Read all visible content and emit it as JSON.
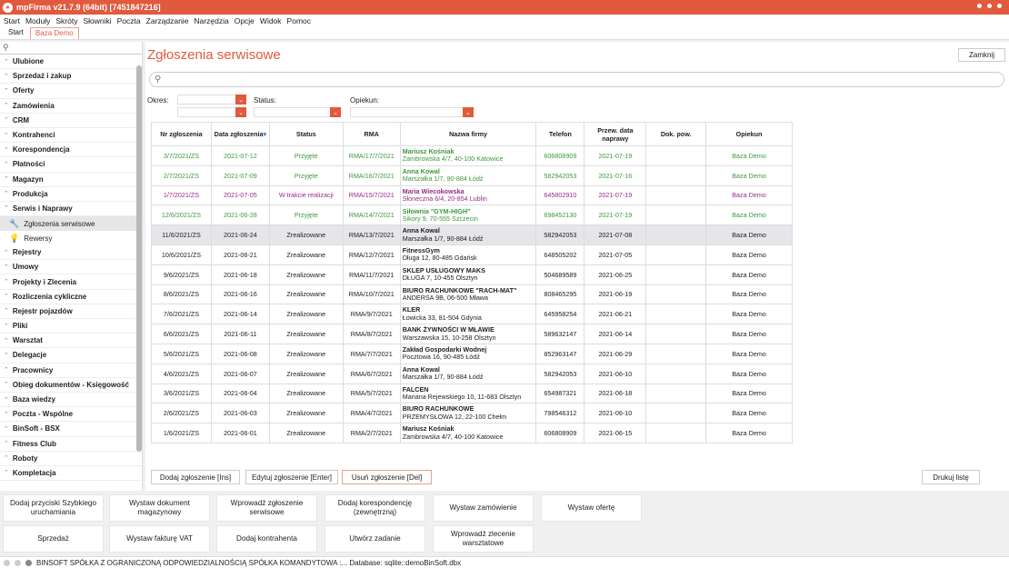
{
  "app": {
    "title": "mpFirma v21.7.9 (64bit) [7451847216]"
  },
  "menu": [
    "Start",
    "Moduły",
    "Skróty",
    "Słowniki",
    "Poczta",
    "Zarządzanie",
    "Narzędzia",
    "Opcje",
    "Widok",
    "Pomoc"
  ],
  "tabs": [
    {
      "label": "Start"
    },
    {
      "label": "Baza Demo"
    }
  ],
  "sidebar": {
    "search_icon": "search-icon",
    "items_top": [
      "Ulubione",
      "Sprzedaż i zakup",
      "Oferty",
      "Zamówienia",
      "CRM",
      "Kontrahenci",
      "Korespondencja",
      "Płatności",
      "Magazyn",
      "Produkcja",
      "Serwis i Naprawy"
    ],
    "sub": [
      {
        "label": "Zgłoszenia serwisowe",
        "icon": "wrench-icon"
      },
      {
        "label": "Rewersy",
        "icon": "bulb-icon"
      }
    ],
    "items_bottom": [
      "Rejestry",
      "Umowy",
      "Projekty i Zlecenia",
      "Rozliczenia cykliczne",
      "Rejestr pojazdów",
      "Pliki",
      "Warsztat",
      "Delegacje",
      "Pracownicy",
      "Obieg dokumentów - Księgowość",
      "Baza wiedzy",
      "Poczta - Wspólne",
      "BinSoft - BSX",
      "Fitness Club",
      "Roboty",
      "Kompletacja"
    ]
  },
  "main": {
    "title": "Zgłoszenia serwisowe",
    "close_label": "Zamknij",
    "search_icon": "search-icon",
    "filters": {
      "period": "Okres:",
      "status": "Status:",
      "keeper": "Opiekun:"
    }
  },
  "table": {
    "columns": [
      "Nr zgłoszenia",
      "Data zgłoszenia",
      "Status",
      "RMA",
      "Nazwa firmy",
      "Telefon",
      "Przew. data naprawy",
      "Dok. pow.",
      "Opiekun"
    ],
    "rows": [
      {
        "nr": "3/7/2021/ZS",
        "date": "2021-07-12",
        "status": "Przyjęte",
        "rma": "RMA/17/7/2021",
        "firm": "Mariusz Kośniak",
        "addr": "Zambrowska 4/7, 40-100 Katowice",
        "phone": "606808909",
        "due": "2021-07-19",
        "doc": "",
        "keeper": "Baza Demo",
        "color": "green"
      },
      {
        "nr": "2/7/2021/ZS",
        "date": "2021-07-09",
        "status": "Przyjęte",
        "rma": "RMA/16/7/2021",
        "firm": "Anna Kowal",
        "addr": "Marszałka 1/7, 90-884 Łódź",
        "phone": "582942053",
        "due": "2021-07-16",
        "doc": "",
        "keeper": "Baza Demo",
        "color": "green"
      },
      {
        "nr": "1/7/2021/ZS",
        "date": "2021-07-05",
        "status": "W trakcie realizacji",
        "rma": "RMA/15/7/2021",
        "firm": "Maria Wiecokowska",
        "addr": "Słoneczna 6/4, 20-854 Lublin",
        "phone": "645802910",
        "due": "2021-07-19",
        "doc": "",
        "keeper": "Baza Demo",
        "color": "purple"
      },
      {
        "nr": "12/6/2021/ZS",
        "date": "2021-06-28",
        "status": "Przyjęte",
        "rma": "RMA/14/7/2021",
        "firm": "Siłownia \"GYM-HIGH\"",
        "addr": "Sikory 9, 70-555 Szczecin",
        "phone": "698452130",
        "due": "2021-07-19",
        "doc": "",
        "keeper": "Baza Demo",
        "color": "green"
      },
      {
        "nr": "11/6/2021/ZS",
        "date": "2021-06-24",
        "status": "Zrealizowane",
        "rma": "RMA/13/7/2021",
        "firm": "Anna Kowal",
        "addr": "Marszałka 1/7, 90-884 Łódź",
        "phone": "582942053",
        "due": "2021-07-08",
        "doc": "",
        "keeper": "Baza Demo",
        "color": "normal",
        "selected": true
      },
      {
        "nr": "10/6/2021/ZS",
        "date": "2021-06-21",
        "status": "Zrealizowane",
        "rma": "RMA/12/7/2021",
        "firm": "FitnessGym",
        "addr": "Długa 12, 80-485 Gdańsk",
        "phone": "648505202",
        "due": "2021-07-05",
        "doc": "",
        "keeper": "Baza Demo",
        "color": "normal"
      },
      {
        "nr": "9/6/2021/ZS",
        "date": "2021-06-18",
        "status": "Zrealizowane",
        "rma": "RMA/11/7/2021",
        "firm": "SKLEP USŁUGOWY MAKS",
        "addr": "DŁUGA 7, 10-455 Olsztyn",
        "phone": "504689589",
        "due": "2021-06-25",
        "doc": "",
        "keeper": "Baza Demo",
        "color": "normal"
      },
      {
        "nr": "8/6/2021/ZS",
        "date": "2021-06-16",
        "status": "Zrealizowane",
        "rma": "RMA/10/7/2021",
        "firm": "BIURO RACHUNKOWE \"RACH-MAT\"",
        "addr": "ANDERSA 9B, 06-500 Mława",
        "phone": "808465295",
        "due": "2021-06-19",
        "doc": "",
        "keeper": "Baza Demo",
        "color": "normal"
      },
      {
        "nr": "7/6/2021/ZS",
        "date": "2021-06-14",
        "status": "Zrealizowane",
        "rma": "RMA/9/7/2021",
        "firm": "KLER",
        "addr": "Łowicka 33, 81-504 Gdynia",
        "phone": "645958254",
        "due": "2021-06-21",
        "doc": "",
        "keeper": "Baza Demo",
        "color": "normal"
      },
      {
        "nr": "6/6/2021/ZS",
        "date": "2021-06-11",
        "status": "Zrealizowane",
        "rma": "RMA/8/7/2021",
        "firm": "BANK ŻYWNOŚCI W MŁAWIE",
        "addr": "Warszawska 15, 10-258 Olsztyn",
        "phone": "589632147",
        "due": "2021-06-14",
        "doc": "",
        "keeper": "Baza Demo",
        "color": "normal"
      },
      {
        "nr": "5/6/2021/ZS",
        "date": "2021-06-08",
        "status": "Zrealizowane",
        "rma": "RMA/7/7/2021",
        "firm": "Zakład Gospodarki Wodnej",
        "addr": "Pocztowa 16, 90-485 Łódź",
        "phone": "852963147",
        "due": "2021-06-29",
        "doc": "",
        "keeper": "Baza Demo",
        "color": "normal"
      },
      {
        "nr": "4/6/2021/ZS",
        "date": "2021-06-07",
        "status": "Zrealizowane",
        "rma": "RMA/6/7/2021",
        "firm": "Anna Kowal",
        "addr": "Marszałka 1/7, 90-884 Łódź",
        "phone": "582942053",
        "due": "2021-06-10",
        "doc": "",
        "keeper": "Baza Demo",
        "color": "normal"
      },
      {
        "nr": "3/6/2021/ZS",
        "date": "2021-06-04",
        "status": "Zrealizowane",
        "rma": "RMA/5/7/2021",
        "firm": "FALCEN",
        "addr": "Mariana Rejewskiego 10, 11-683 Olsztyn",
        "phone": "654987321",
        "due": "2021-06-18",
        "doc": "",
        "keeper": "Baza Demo",
        "color": "normal"
      },
      {
        "nr": "2/6/2021/ZS",
        "date": "2021-06-03",
        "status": "Zrealizowane",
        "rma": "RMA/4/7/2021",
        "firm": "BIURO RACHUNKOWE",
        "addr": "PRZEMYSŁOWA 12, 22-100 Chełm",
        "phone": "798546312",
        "due": "2021-06-10",
        "doc": "",
        "keeper": "Baza Demo",
        "color": "normal"
      },
      {
        "nr": "1/6/2021/ZS",
        "date": "2021-06-01",
        "status": "Zrealizowane",
        "rma": "RMA/2/7/2021",
        "firm": "Mariusz Kośniak",
        "addr": "Zambrowska 4/7, 40-100 Katowice",
        "phone": "606808909",
        "due": "2021-06-15",
        "doc": "",
        "keeper": "Baza Demo",
        "color": "normal"
      }
    ]
  },
  "actions": {
    "add": "Dodaj zgłoszenie [Ins]",
    "edit": "Edytuj zgłoszenie [Enter]",
    "delete": "Usuń zgłoszenie [Del]",
    "print": "Drukuj listę"
  },
  "quick": [
    "Dodaj przyciski Szybkiego uruchamiania",
    "Wystaw dokument magazynowy",
    "Wprowadź zgłoszenie serwisowe",
    "Dodaj korespondencję (zewnętrzną)",
    "Wystaw zamówienie",
    "Wystaw ofertę",
    "Sprzedaż",
    "Wystaw fakturę VAT",
    "Dodaj kontrahenta",
    "Utwórz zadanie",
    "Wprowadź zlecenie warsztatowe"
  ],
  "status": {
    "text": "BINSOFT SPÓŁKA Z OGRANICZONĄ ODPOWIEDZIALNOŚCIĄ SPÓŁKA KOMANDYTOWA :... Database: sqlite::demoBinSoft.dbx"
  },
  "colors": {
    "accent": "#e25a3e",
    "green": "#3a9a3a",
    "purple": "#9a2a8a"
  }
}
